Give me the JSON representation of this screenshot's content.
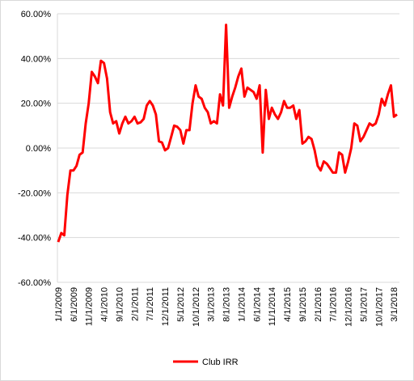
{
  "chart_data": {
    "type": "line",
    "title": "",
    "xlabel": "",
    "ylabel": "",
    "ylim": [
      -0.6,
      0.6
    ],
    "y_ticks": [
      0.6,
      0.4,
      0.2,
      0.0,
      -0.2,
      -0.4,
      -0.6
    ],
    "y_tick_labels": [
      "60.00%",
      "40.00%",
      "20.00%",
      "0.00%",
      "-20.00%",
      "-40.00%",
      "-60.00%"
    ],
    "x_tick_labels": [
      "1/1/2009",
      "6/1/2009",
      "11/1/2009",
      "4/1/2010",
      "9/1/2010",
      "2/1/2011",
      "7/1/2011",
      "12/1/2011",
      "5/1/2012",
      "10/1/2012",
      "3/1/2013",
      "8/1/2013",
      "1/1/2014",
      "6/1/2014",
      "11/1/2014",
      "4/1/2015",
      "9/1/2015",
      "2/1/2016",
      "7/1/2016",
      "12/1/2016",
      "5/1/2017",
      "10/1/2017",
      "3/1/2018"
    ],
    "x_tick_step_months": 5,
    "x_start": "1/1/2009",
    "x_end": "5/1/2018",
    "grid": "horizontal",
    "legend_position": "bottom",
    "series": [
      {
        "name": "Club IRR",
        "color": "#ff0000",
        "values": [
          -0.42,
          -0.38,
          -0.39,
          -0.21,
          -0.1,
          -0.1,
          -0.08,
          -0.03,
          -0.02,
          0.11,
          0.2,
          0.34,
          0.32,
          0.29,
          0.39,
          0.38,
          0.31,
          0.16,
          0.11,
          0.12,
          0.065,
          0.11,
          0.14,
          0.11,
          0.12,
          0.14,
          0.11,
          0.115,
          0.13,
          0.19,
          0.21,
          0.19,
          0.15,
          0.03,
          0.025,
          -0.01,
          0.0,
          0.05,
          0.1,
          0.095,
          0.08,
          0.02,
          0.08,
          0.08,
          0.2,
          0.28,
          0.23,
          0.22,
          0.18,
          0.16,
          0.11,
          0.12,
          0.11,
          0.24,
          0.19,
          0.55,
          0.18,
          0.23,
          0.27,
          0.32,
          0.355,
          0.23,
          0.27,
          0.26,
          0.25,
          0.22,
          0.28,
          -0.02,
          0.26,
          0.13,
          0.18,
          0.15,
          0.13,
          0.16,
          0.21,
          0.18,
          0.18,
          0.19,
          0.13,
          0.17,
          0.02,
          0.03,
          0.05,
          0.04,
          -0.01,
          -0.08,
          -0.1,
          -0.06,
          -0.07,
          -0.09,
          -0.11,
          -0.11,
          -0.02,
          -0.03,
          -0.11,
          -0.06,
          0.0,
          0.11,
          0.1,
          0.03,
          0.05,
          0.08,
          0.11,
          0.1,
          0.11,
          0.15,
          0.22,
          0.19,
          0.24,
          0.28,
          0.14,
          0.15
        ]
      }
    ]
  }
}
